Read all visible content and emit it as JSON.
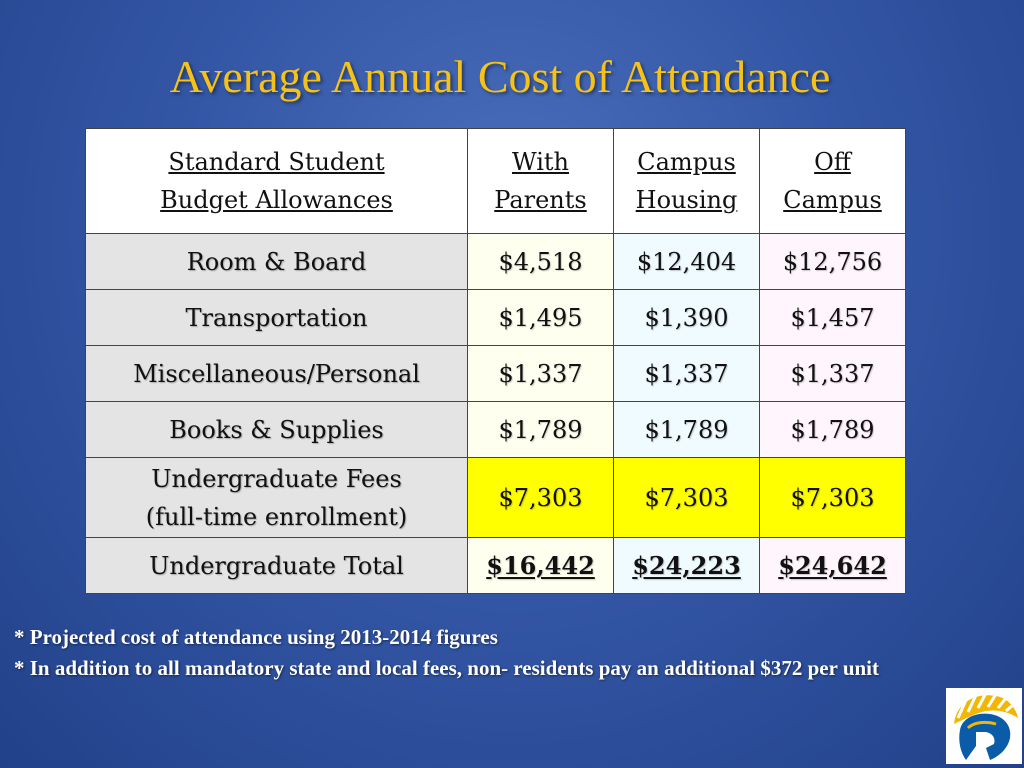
{
  "title": "Average Annual Cost of Attendance",
  "table": {
    "header": {
      "label_line1": "Standard Student",
      "label_line2": "Budget Allowances",
      "col1_line1": "With",
      "col1_line2": "Parents",
      "col2_line1": "Campus",
      "col2_line2": "Housing",
      "col3_line1": "Off",
      "col3_line2": "Campus"
    },
    "rows": [
      {
        "label": "Room & Board",
        "with_parents": "$4,518",
        "campus_housing": "$12,404",
        "off_campus": "$12,756"
      },
      {
        "label": "Transportation",
        "with_parents": "$1,495",
        "campus_housing": "$1,390",
        "off_campus": "$1,457"
      },
      {
        "label": "Miscellaneous/Personal",
        "with_parents": "$1,337",
        "campus_housing": "$1,337",
        "off_campus": "$1,337"
      },
      {
        "label": "Books & Supplies",
        "with_parents": "$1,789",
        "campus_housing": "$1,789",
        "off_campus": "$1,789"
      },
      {
        "label_line1": "Undergraduate Fees",
        "label_line2": "(full-time enrollment)",
        "with_parents": "$7,303",
        "campus_housing": "$7,303",
        "off_campus": "$7,303"
      },
      {
        "label": "Undergraduate Total",
        "with_parents": "$16,442",
        "campus_housing": "$24,223",
        "off_campus": "$24,642"
      }
    ]
  },
  "notes": {
    "note1": "* Projected cost of attendance using 2013-2014 figures",
    "note2": "* In addition to all mandatory state and local fees, non- residents pay an additional $372 per unit"
  },
  "colors": {
    "title": "#f6c219",
    "fees_highlight": "#ffff00",
    "background": "#3457a6"
  },
  "logo": {
    "icon": "spartan-helmet-logo"
  }
}
